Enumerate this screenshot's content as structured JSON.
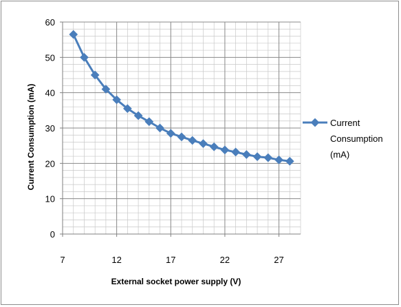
{
  "chart_data": {
    "type": "line",
    "title": "",
    "xlabel": "External socket power supply (V)",
    "ylabel": "Current Consumption (mA)",
    "xlim": [
      7,
      29
    ],
    "ylim": [
      0,
      60
    ],
    "x_ticks": [
      7,
      12,
      17,
      22,
      27
    ],
    "y_ticks": [
      0,
      10,
      20,
      30,
      40,
      50,
      60
    ],
    "grid": true,
    "legend_position": "right",
    "series": [
      {
        "name": "Current Consumption (mA)",
        "legend_lines": [
          "Current",
          "Consumption",
          "(mA)"
        ],
        "color": "#4a7ebb",
        "marker": "diamond",
        "x": [
          8,
          9,
          10,
          11,
          12,
          13,
          14,
          15,
          16,
          17,
          18,
          19,
          20,
          21,
          22,
          23,
          24,
          25,
          26,
          27,
          28
        ],
        "y": [
          56.5,
          50,
          45,
          41,
          38,
          35.5,
          33.5,
          31.8,
          30,
          28.5,
          27.5,
          26.5,
          25.6,
          24.7,
          23.8,
          23.2,
          22.5,
          21.9,
          21.6,
          21,
          20.6
        ]
      }
    ]
  }
}
